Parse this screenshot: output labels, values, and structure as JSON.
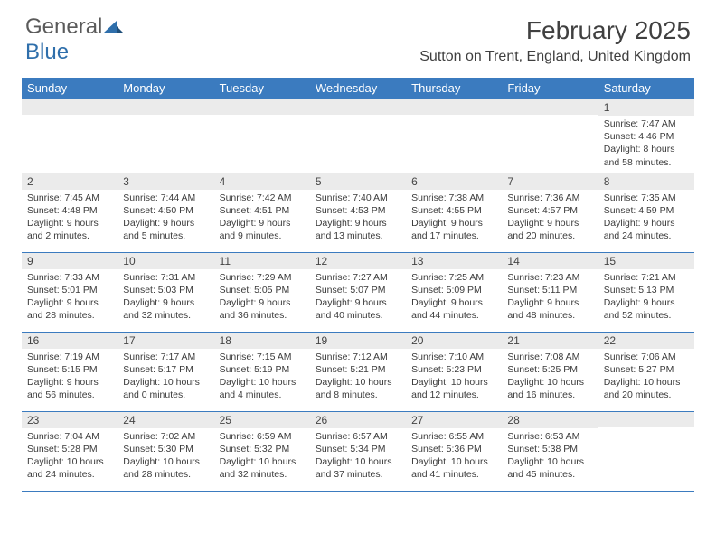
{
  "logo": {
    "text1": "General",
    "text2": "Blue"
  },
  "title": "February 2025",
  "location": "Sutton on Trent, England, United Kingdom",
  "colors": {
    "header_bg": "#3b7bbf",
    "header_text": "#ffffff",
    "daynum_bg": "#ebebeb",
    "rule": "#3b7bbf",
    "body_text": "#3b3b3b",
    "logo_gray": "#5a5a5a",
    "logo_blue": "#2f6fab"
  },
  "weekdays": [
    "Sunday",
    "Monday",
    "Tuesday",
    "Wednesday",
    "Thursday",
    "Friday",
    "Saturday"
  ],
  "weeks": [
    [
      {
        "n": "",
        "lines": [
          "",
          "",
          "",
          ""
        ]
      },
      {
        "n": "",
        "lines": [
          "",
          "",
          "",
          ""
        ]
      },
      {
        "n": "",
        "lines": [
          "",
          "",
          "",
          ""
        ]
      },
      {
        "n": "",
        "lines": [
          "",
          "",
          "",
          ""
        ]
      },
      {
        "n": "",
        "lines": [
          "",
          "",
          "",
          ""
        ]
      },
      {
        "n": "",
        "lines": [
          "",
          "",
          "",
          ""
        ]
      },
      {
        "n": "1",
        "lines": [
          "Sunrise: 7:47 AM",
          "Sunset: 4:46 PM",
          "Daylight: 8 hours",
          "and 58 minutes."
        ]
      }
    ],
    [
      {
        "n": "2",
        "lines": [
          "Sunrise: 7:45 AM",
          "Sunset: 4:48 PM",
          "Daylight: 9 hours",
          "and 2 minutes."
        ]
      },
      {
        "n": "3",
        "lines": [
          "Sunrise: 7:44 AM",
          "Sunset: 4:50 PM",
          "Daylight: 9 hours",
          "and 5 minutes."
        ]
      },
      {
        "n": "4",
        "lines": [
          "Sunrise: 7:42 AM",
          "Sunset: 4:51 PM",
          "Daylight: 9 hours",
          "and 9 minutes."
        ]
      },
      {
        "n": "5",
        "lines": [
          "Sunrise: 7:40 AM",
          "Sunset: 4:53 PM",
          "Daylight: 9 hours",
          "and 13 minutes."
        ]
      },
      {
        "n": "6",
        "lines": [
          "Sunrise: 7:38 AM",
          "Sunset: 4:55 PM",
          "Daylight: 9 hours",
          "and 17 minutes."
        ]
      },
      {
        "n": "7",
        "lines": [
          "Sunrise: 7:36 AM",
          "Sunset: 4:57 PM",
          "Daylight: 9 hours",
          "and 20 minutes."
        ]
      },
      {
        "n": "8",
        "lines": [
          "Sunrise: 7:35 AM",
          "Sunset: 4:59 PM",
          "Daylight: 9 hours",
          "and 24 minutes."
        ]
      }
    ],
    [
      {
        "n": "9",
        "lines": [
          "Sunrise: 7:33 AM",
          "Sunset: 5:01 PM",
          "Daylight: 9 hours",
          "and 28 minutes."
        ]
      },
      {
        "n": "10",
        "lines": [
          "Sunrise: 7:31 AM",
          "Sunset: 5:03 PM",
          "Daylight: 9 hours",
          "and 32 minutes."
        ]
      },
      {
        "n": "11",
        "lines": [
          "Sunrise: 7:29 AM",
          "Sunset: 5:05 PM",
          "Daylight: 9 hours",
          "and 36 minutes."
        ]
      },
      {
        "n": "12",
        "lines": [
          "Sunrise: 7:27 AM",
          "Sunset: 5:07 PM",
          "Daylight: 9 hours",
          "and 40 minutes."
        ]
      },
      {
        "n": "13",
        "lines": [
          "Sunrise: 7:25 AM",
          "Sunset: 5:09 PM",
          "Daylight: 9 hours",
          "and 44 minutes."
        ]
      },
      {
        "n": "14",
        "lines": [
          "Sunrise: 7:23 AM",
          "Sunset: 5:11 PM",
          "Daylight: 9 hours",
          "and 48 minutes."
        ]
      },
      {
        "n": "15",
        "lines": [
          "Sunrise: 7:21 AM",
          "Sunset: 5:13 PM",
          "Daylight: 9 hours",
          "and 52 minutes."
        ]
      }
    ],
    [
      {
        "n": "16",
        "lines": [
          "Sunrise: 7:19 AM",
          "Sunset: 5:15 PM",
          "Daylight: 9 hours",
          "and 56 minutes."
        ]
      },
      {
        "n": "17",
        "lines": [
          "Sunrise: 7:17 AM",
          "Sunset: 5:17 PM",
          "Daylight: 10 hours",
          "and 0 minutes."
        ]
      },
      {
        "n": "18",
        "lines": [
          "Sunrise: 7:15 AM",
          "Sunset: 5:19 PM",
          "Daylight: 10 hours",
          "and 4 minutes."
        ]
      },
      {
        "n": "19",
        "lines": [
          "Sunrise: 7:12 AM",
          "Sunset: 5:21 PM",
          "Daylight: 10 hours",
          "and 8 minutes."
        ]
      },
      {
        "n": "20",
        "lines": [
          "Sunrise: 7:10 AM",
          "Sunset: 5:23 PM",
          "Daylight: 10 hours",
          "and 12 minutes."
        ]
      },
      {
        "n": "21",
        "lines": [
          "Sunrise: 7:08 AM",
          "Sunset: 5:25 PM",
          "Daylight: 10 hours",
          "and 16 minutes."
        ]
      },
      {
        "n": "22",
        "lines": [
          "Sunrise: 7:06 AM",
          "Sunset: 5:27 PM",
          "Daylight: 10 hours",
          "and 20 minutes."
        ]
      }
    ],
    [
      {
        "n": "23",
        "lines": [
          "Sunrise: 7:04 AM",
          "Sunset: 5:28 PM",
          "Daylight: 10 hours",
          "and 24 minutes."
        ]
      },
      {
        "n": "24",
        "lines": [
          "Sunrise: 7:02 AM",
          "Sunset: 5:30 PM",
          "Daylight: 10 hours",
          "and 28 minutes."
        ]
      },
      {
        "n": "25",
        "lines": [
          "Sunrise: 6:59 AM",
          "Sunset: 5:32 PM",
          "Daylight: 10 hours",
          "and 32 minutes."
        ]
      },
      {
        "n": "26",
        "lines": [
          "Sunrise: 6:57 AM",
          "Sunset: 5:34 PM",
          "Daylight: 10 hours",
          "and 37 minutes."
        ]
      },
      {
        "n": "27",
        "lines": [
          "Sunrise: 6:55 AM",
          "Sunset: 5:36 PM",
          "Daylight: 10 hours",
          "and 41 minutes."
        ]
      },
      {
        "n": "28",
        "lines": [
          "Sunrise: 6:53 AM",
          "Sunset: 5:38 PM",
          "Daylight: 10 hours",
          "and 45 minutes."
        ]
      },
      {
        "n": "",
        "lines": [
          "",
          "",
          "",
          ""
        ]
      }
    ]
  ]
}
